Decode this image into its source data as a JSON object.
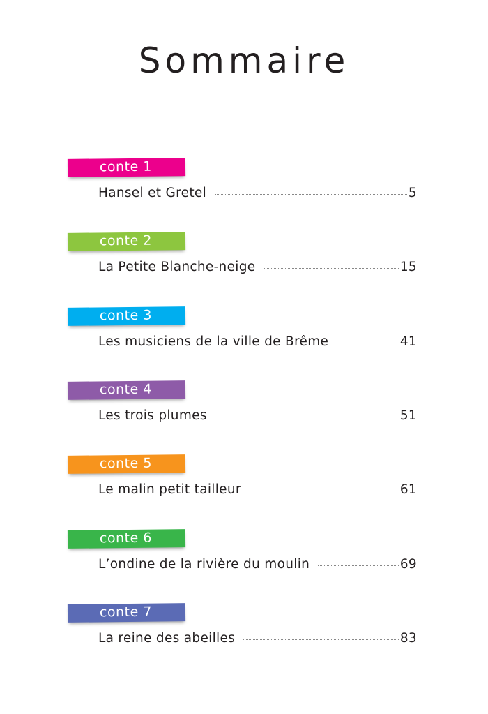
{
  "title": "Sommaire",
  "entries": [
    {
      "label": "conte 1",
      "color": "#ec008c",
      "story": "Hansel et Gretel",
      "page": "5"
    },
    {
      "label": "conte 2",
      "color": "#8dc63f",
      "story": "La Petite Blanche-neige",
      "page": "15"
    },
    {
      "label": "conte 3",
      "color": "#00aeef",
      "story": "Les musiciens de la ville de Brême",
      "page": "41"
    },
    {
      "label": "conte 4",
      "color": "#8e5ba8",
      "story": "Les trois plumes",
      "page": "51"
    },
    {
      "label": "conte 5",
      "color": "#f7941d",
      "story": "Le malin petit tailleur",
      "page": "61"
    },
    {
      "label": "conte 6",
      "color": "#39b54a",
      "story": "L’ondine de la rivière du moulin",
      "page": "69"
    },
    {
      "label": "conte 7",
      "color": "#5b6bb5",
      "story": "La reine des abeilles",
      "page": "83"
    }
  ]
}
